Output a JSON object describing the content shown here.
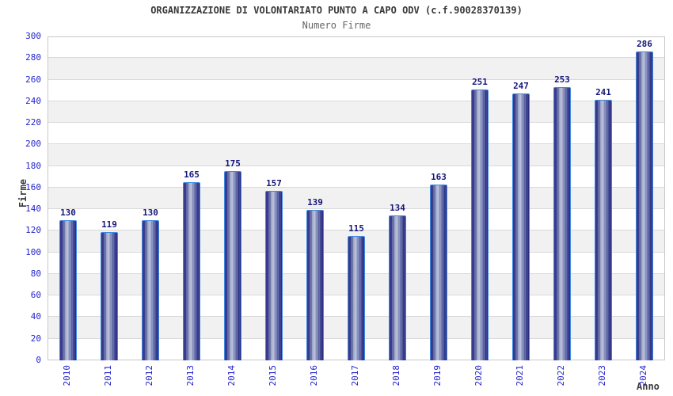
{
  "header": {
    "title": "ORGANIZZAZIONE DI VOLONTARIATO PUNTO A CAPO ODV (c.f.90028370139)",
    "subtitle": "Numero Firme"
  },
  "chart_data": {
    "type": "bar",
    "title": "ORGANIZZAZIONE DI VOLONTARIATO PUNTO A CAPO ODV (c.f.90028370139)",
    "subtitle": "Numero Firme",
    "categories": [
      "2010",
      "2011",
      "2012",
      "2013",
      "2014",
      "2015",
      "2016",
      "2017",
      "2018",
      "2019",
      "2020",
      "2021",
      "2022",
      "2023",
      "2024"
    ],
    "values": [
      130,
      119,
      130,
      165,
      175,
      157,
      139,
      115,
      134,
      163,
      251,
      247,
      253,
      241,
      286
    ],
    "xlabel": "Anno",
    "ylabel": "Firme",
    "ylim": [
      0,
      300
    ],
    "ytick_step": 20,
    "yticks": [
      0,
      20,
      40,
      60,
      80,
      100,
      120,
      140,
      160,
      180,
      200,
      220,
      240,
      260,
      280,
      300
    ],
    "grid": "horizontal-bands-alternating",
    "legend": "none",
    "bar_labels_shown": true,
    "colors": {
      "tick_label": "#2323cc",
      "bar_value_label": "#16167a",
      "bar_edge_dark": "#1d1d7c",
      "bar_center_light": "#c4cbe4",
      "bar_outline": "#4188e0",
      "band_gray": "#f1f1f1",
      "band_white": "#ffffff",
      "gridline": "#d9d9d9",
      "title_text": "#3a3a3a",
      "subtitle_text": "#666666"
    }
  }
}
